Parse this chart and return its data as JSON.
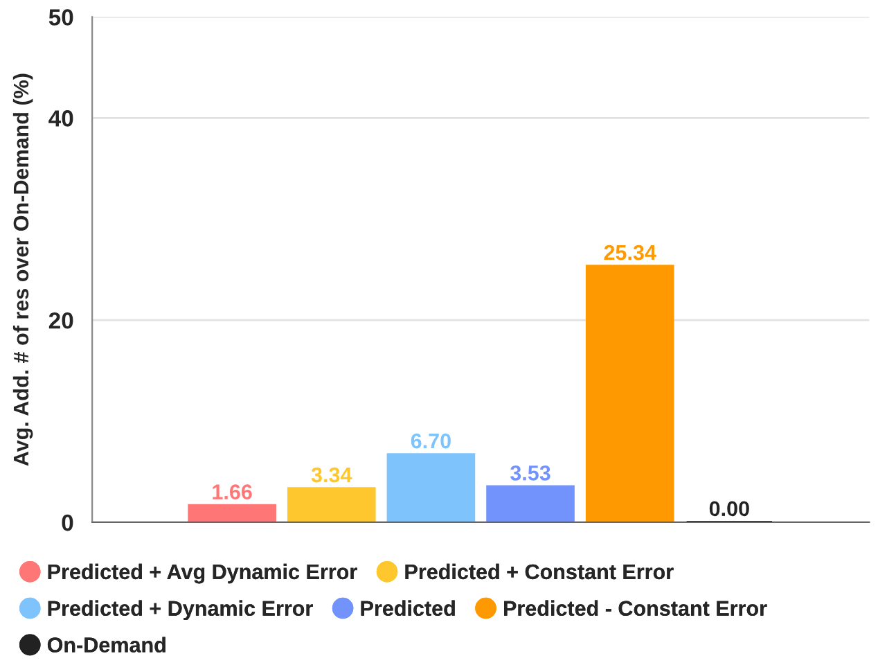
{
  "chart_data": {
    "type": "bar",
    "ylabel": "Avg. Add. # of res over On-Demand (%)",
    "categories": [
      null
    ],
    "series": [
      {
        "name": "Predicted + Avg Dynamic Error",
        "color": "#ff7676",
        "values": [
          1.66
        ],
        "value_labels": [
          "1.66"
        ]
      },
      {
        "name": "Predicted + Constant Error",
        "color": "#fdc72d",
        "values": [
          3.34
        ],
        "value_labels": [
          "3.34"
        ]
      },
      {
        "name": "Predicted + Dynamic Error",
        "color": "#7fc3fc",
        "values": [
          6.7
        ],
        "value_labels": [
          "6.70"
        ]
      },
      {
        "name": "Predicted",
        "color": "#7293fb",
        "values": [
          3.53
        ],
        "value_labels": [
          "3.53"
        ]
      },
      {
        "name": "Predicted - Constant Error",
        "color": "#fe9902",
        "values": [
          25.34
        ],
        "value_labels": [
          "25.34"
        ]
      },
      {
        "name": "On-Demand",
        "color": "#222222",
        "values": [
          0.0
        ],
        "value_labels": [
          "0.00"
        ]
      }
    ],
    "ylim": [
      0,
      50
    ],
    "yticks": [
      0,
      20,
      40,
      50
    ],
    "grid": "y",
    "legend": "bottom"
  }
}
